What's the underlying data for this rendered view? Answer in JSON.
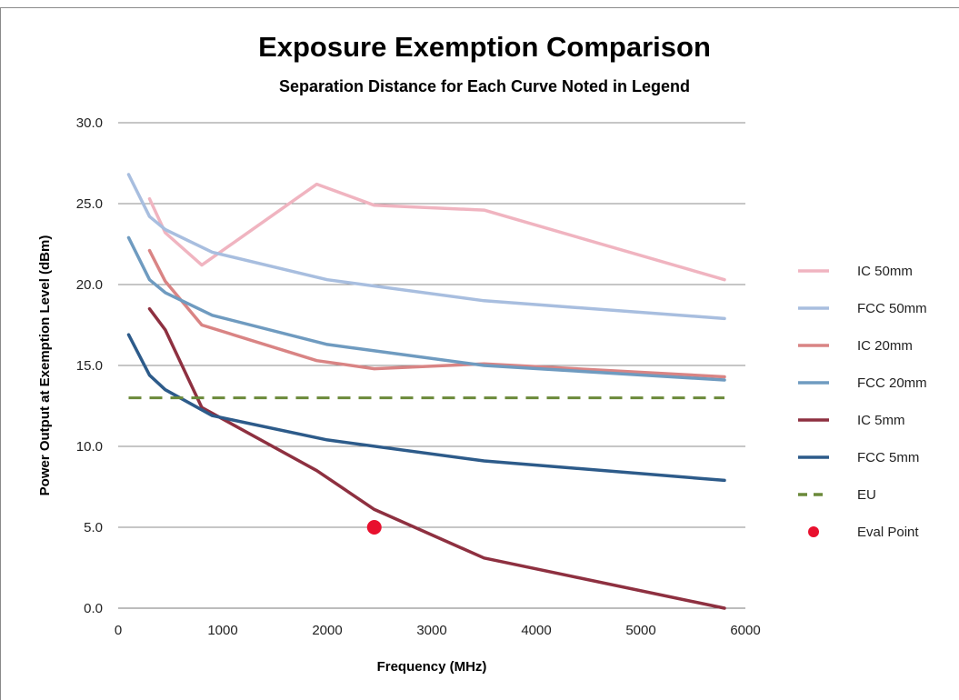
{
  "chart_data": {
    "type": "line",
    "title": "Exposure Exemption Comparison",
    "subtitle": "Separation Distance for Each Curve Noted in Legend",
    "xlabel": "Frequency (MHz)",
    "ylabel": "Power Output at  Exemption Level (dBm)",
    "xlim": [
      0,
      6000
    ],
    "ylim": [
      0,
      30
    ],
    "x_ticks": [
      "0",
      "1000",
      "2000",
      "3000",
      "4000",
      "5000",
      "6000"
    ],
    "y_ticks": [
      "0.0",
      "5.0",
      "10.0",
      "15.0",
      "20.0",
      "25.0",
      "30.0"
    ],
    "grid": "horizontal",
    "legend_position": "right",
    "series": [
      {
        "name": "IC 50mm",
        "color": "#f0b4c0",
        "dash": false,
        "points": [
          [
            300,
            25.3
          ],
          [
            450,
            23.2
          ],
          [
            800,
            21.2
          ],
          [
            1900,
            26.2
          ],
          [
            2450,
            24.9
          ],
          [
            3500,
            24.6
          ],
          [
            5800,
            20.3
          ]
        ]
      },
      {
        "name": "FCC 50mm",
        "color": "#a8bedf",
        "dash": false,
        "points": [
          [
            100,
            26.8
          ],
          [
            300,
            24.2
          ],
          [
            450,
            23.4
          ],
          [
            900,
            22.0
          ],
          [
            2000,
            20.3
          ],
          [
            3500,
            19.0
          ],
          [
            5800,
            17.9
          ]
        ]
      },
      {
        "name": "IC 20mm",
        "color": "#d98484",
        "dash": false,
        "points": [
          [
            300,
            22.1
          ],
          [
            450,
            20.2
          ],
          [
            800,
            17.5
          ],
          [
            1900,
            15.3
          ],
          [
            2450,
            14.8
          ],
          [
            3500,
            15.1
          ],
          [
            5800,
            14.3
          ]
        ]
      },
      {
        "name": "FCC 20mm",
        "color": "#6f9bc0",
        "dash": false,
        "points": [
          [
            100,
            22.9
          ],
          [
            300,
            20.3
          ],
          [
            450,
            19.5
          ],
          [
            900,
            18.1
          ],
          [
            2000,
            16.3
          ],
          [
            3500,
            15.0
          ],
          [
            5800,
            14.1
          ]
        ]
      },
      {
        "name": "IC 5mm",
        "color": "#8e3040",
        "dash": false,
        "points": [
          [
            300,
            18.5
          ],
          [
            450,
            17.2
          ],
          [
            800,
            12.4
          ],
          [
            1900,
            8.5
          ],
          [
            2450,
            6.1
          ],
          [
            3500,
            3.1
          ],
          [
            5800,
            0.0
          ]
        ]
      },
      {
        "name": "FCC 5mm",
        "color": "#2d5b8a",
        "dash": false,
        "points": [
          [
            100,
            16.9
          ],
          [
            300,
            14.4
          ],
          [
            450,
            13.5
          ],
          [
            900,
            11.9
          ],
          [
            2000,
            10.4
          ],
          [
            3500,
            9.1
          ],
          [
            5800,
            7.9
          ]
        ]
      },
      {
        "name": "EU",
        "color": "#6b8a3a",
        "dash": true,
        "points": [
          [
            100,
            13.0
          ],
          [
            5800,
            13.0
          ]
        ]
      },
      {
        "name": "Eval Point",
        "color": "#e8102e",
        "marker": "circle",
        "points": [
          [
            2450,
            5.0
          ]
        ]
      }
    ]
  }
}
